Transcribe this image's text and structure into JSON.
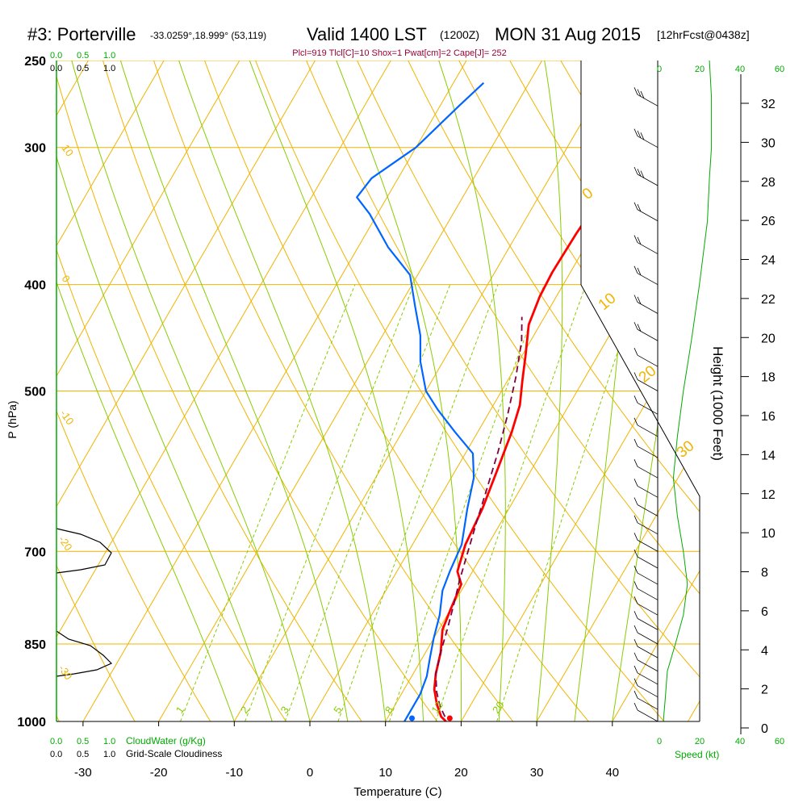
{
  "header": {
    "station": "#3: Porterville",
    "coords": "-33.0259°,18.999° (53,119)",
    "valid": "Valid 1400 LST",
    "utc": "(1200Z)",
    "date": "MON 31 Aug 2015",
    "forecast": "[12hrFcst@0438z]",
    "params": "Plcl=919 Tlcl[C]=10 Shox=1 Pwat[cm]=2 Cape[J]= 252"
  },
  "colors": {
    "temperature": "#ff0000",
    "dewpoint": "#0066ff",
    "parcel": "#800040",
    "isotherm": "#f0b400",
    "dry_adiabat": "#f0b400",
    "moist_adiabat": "#88cc00",
    "mixing_ratio": "#88cc00",
    "cloud_axis": "#00aa00",
    "params_text": "#990033"
  },
  "cloud_axis": {
    "water_label": "CloudWater (g/Kg)",
    "cloudiness_label": "Grid-Scale Cloudiness",
    "top_green": [
      "0.0",
      "0.5",
      "1.0"
    ],
    "top_black": [
      "0.0",
      "0.5",
      "1.0"
    ],
    "bottom_green": [
      "0.0",
      "0.5",
      "1.0"
    ],
    "bottom_black": [
      "0.0",
      "0.5",
      "1.0"
    ]
  },
  "speed_axis": {
    "label": "Speed (kt)",
    "ticks": [
      "0",
      "20",
      "40",
      "60"
    ]
  },
  "chart_data": {
    "type": "line",
    "title": "#3: Porterville  Valid 1400 LST (1200Z) MON 31 Aug 2015",
    "xlabel": "Temperature (C)",
    "ylabel": "P (hPa)",
    "y2label": "Height (1000 Feet)",
    "xlim": [
      -35,
      45
    ],
    "ylim": [
      1000,
      250
    ],
    "x_ticks": [
      "-30",
      "-20",
      "-10",
      "0",
      "10",
      "20",
      "30",
      "40"
    ],
    "y_ticks": [
      "250",
      "300",
      "400",
      "500",
      "700",
      "850",
      "1000"
    ],
    "height_ticks": [
      "0",
      "2",
      "4",
      "6",
      "8",
      "10",
      "12",
      "14",
      "16",
      "18",
      "20",
      "22",
      "24",
      "26",
      "28",
      "30",
      "32"
    ],
    "mixing_ratio_labels": [
      "1",
      "2",
      "3",
      "5",
      "8",
      "12",
      "20"
    ],
    "isotherm_labels": [
      "10",
      "0",
      "-10",
      "-20",
      "-30"
    ],
    "adiabat_labels": [
      "0",
      "10",
      "20",
      "30"
    ],
    "series": [
      {
        "name": "Temperature",
        "points": [
          [
            18,
            1000
          ],
          [
            17,
            990
          ],
          [
            15.5,
            965
          ],
          [
            14,
            935
          ],
          [
            13,
            905
          ],
          [
            12,
            865
          ],
          [
            10.5,
            825
          ],
          [
            10,
            790
          ],
          [
            9.5,
            750
          ],
          [
            8,
            730
          ],
          [
            7,
            690
          ],
          [
            6.5,
            640
          ],
          [
            5.5,
            590
          ],
          [
            4.5,
            545
          ],
          [
            3.5,
            515
          ],
          [
            2,
            490
          ],
          [
            0.5,
            465
          ],
          [
            -1.5,
            435
          ],
          [
            -2.2,
            410
          ],
          [
            -2.4,
            390
          ],
          [
            -2.2,
            360
          ],
          [
            -1.8,
            335
          ],
          [
            -1.6,
            300
          ],
          [
            -1.7,
            270
          ],
          [
            -1.8,
            260
          ]
        ]
      },
      {
        "name": "Dewpoint",
        "points": [
          [
            12.5,
            1000
          ],
          [
            12.5,
            985
          ],
          [
            12.5,
            945
          ],
          [
            12,
            910
          ],
          [
            11,
            875
          ],
          [
            10,
            840
          ],
          [
            9,
            800
          ],
          [
            7.5,
            760
          ],
          [
            7,
            730
          ],
          [
            6.5,
            690
          ],
          [
            4.5,
            640
          ],
          [
            3,
            600
          ],
          [
            1,
            570
          ],
          [
            -3,
            545
          ],
          [
            -7,
            520
          ],
          [
            -10,
            500
          ],
          [
            -13,
            470
          ],
          [
            -15,
            445
          ],
          [
            -18,
            418
          ],
          [
            -21,
            392
          ],
          [
            -26,
            370
          ],
          [
            -31,
            345
          ],
          [
            -34,
            333
          ],
          [
            -33.5,
            320
          ],
          [
            -30,
            300
          ],
          [
            -27.5,
            275
          ],
          [
            -26,
            262
          ]
        ]
      },
      {
        "name": "Parcel",
        "points": [
          [
            17.5,
            990
          ],
          [
            16,
            968
          ],
          [
            14.5,
            940
          ],
          [
            13,
            905
          ],
          [
            12,
            865
          ],
          [
            11,
            820
          ],
          [
            10,
            780
          ],
          [
            9,
            745
          ],
          [
            8,
            705
          ],
          [
            6.8,
            660
          ],
          [
            5.6,
            615
          ],
          [
            4.2,
            568
          ],
          [
            2.6,
            525
          ],
          [
            0.8,
            485
          ],
          [
            -1.2,
            450
          ],
          [
            -3,
            428
          ]
        ]
      }
    ],
    "surface": {
      "temperature": 18.5,
      "dewpoint": 13.5
    },
    "wind_speed_profile_kt": [
      [
        2,
        1000
      ],
      [
        3,
        950
      ],
      [
        4,
        900
      ],
      [
        8,
        850
      ],
      [
        12,
        800
      ],
      [
        14,
        750
      ],
      [
        12,
        700
      ],
      [
        9,
        650
      ],
      [
        7,
        600
      ],
      [
        9,
        550
      ],
      [
        12,
        500
      ],
      [
        16,
        450
      ],
      [
        20,
        400
      ],
      [
        24,
        350
      ],
      [
        25,
        320
      ],
      [
        26,
        300
      ],
      [
        26,
        270
      ],
      [
        25,
        250
      ]
    ]
  }
}
